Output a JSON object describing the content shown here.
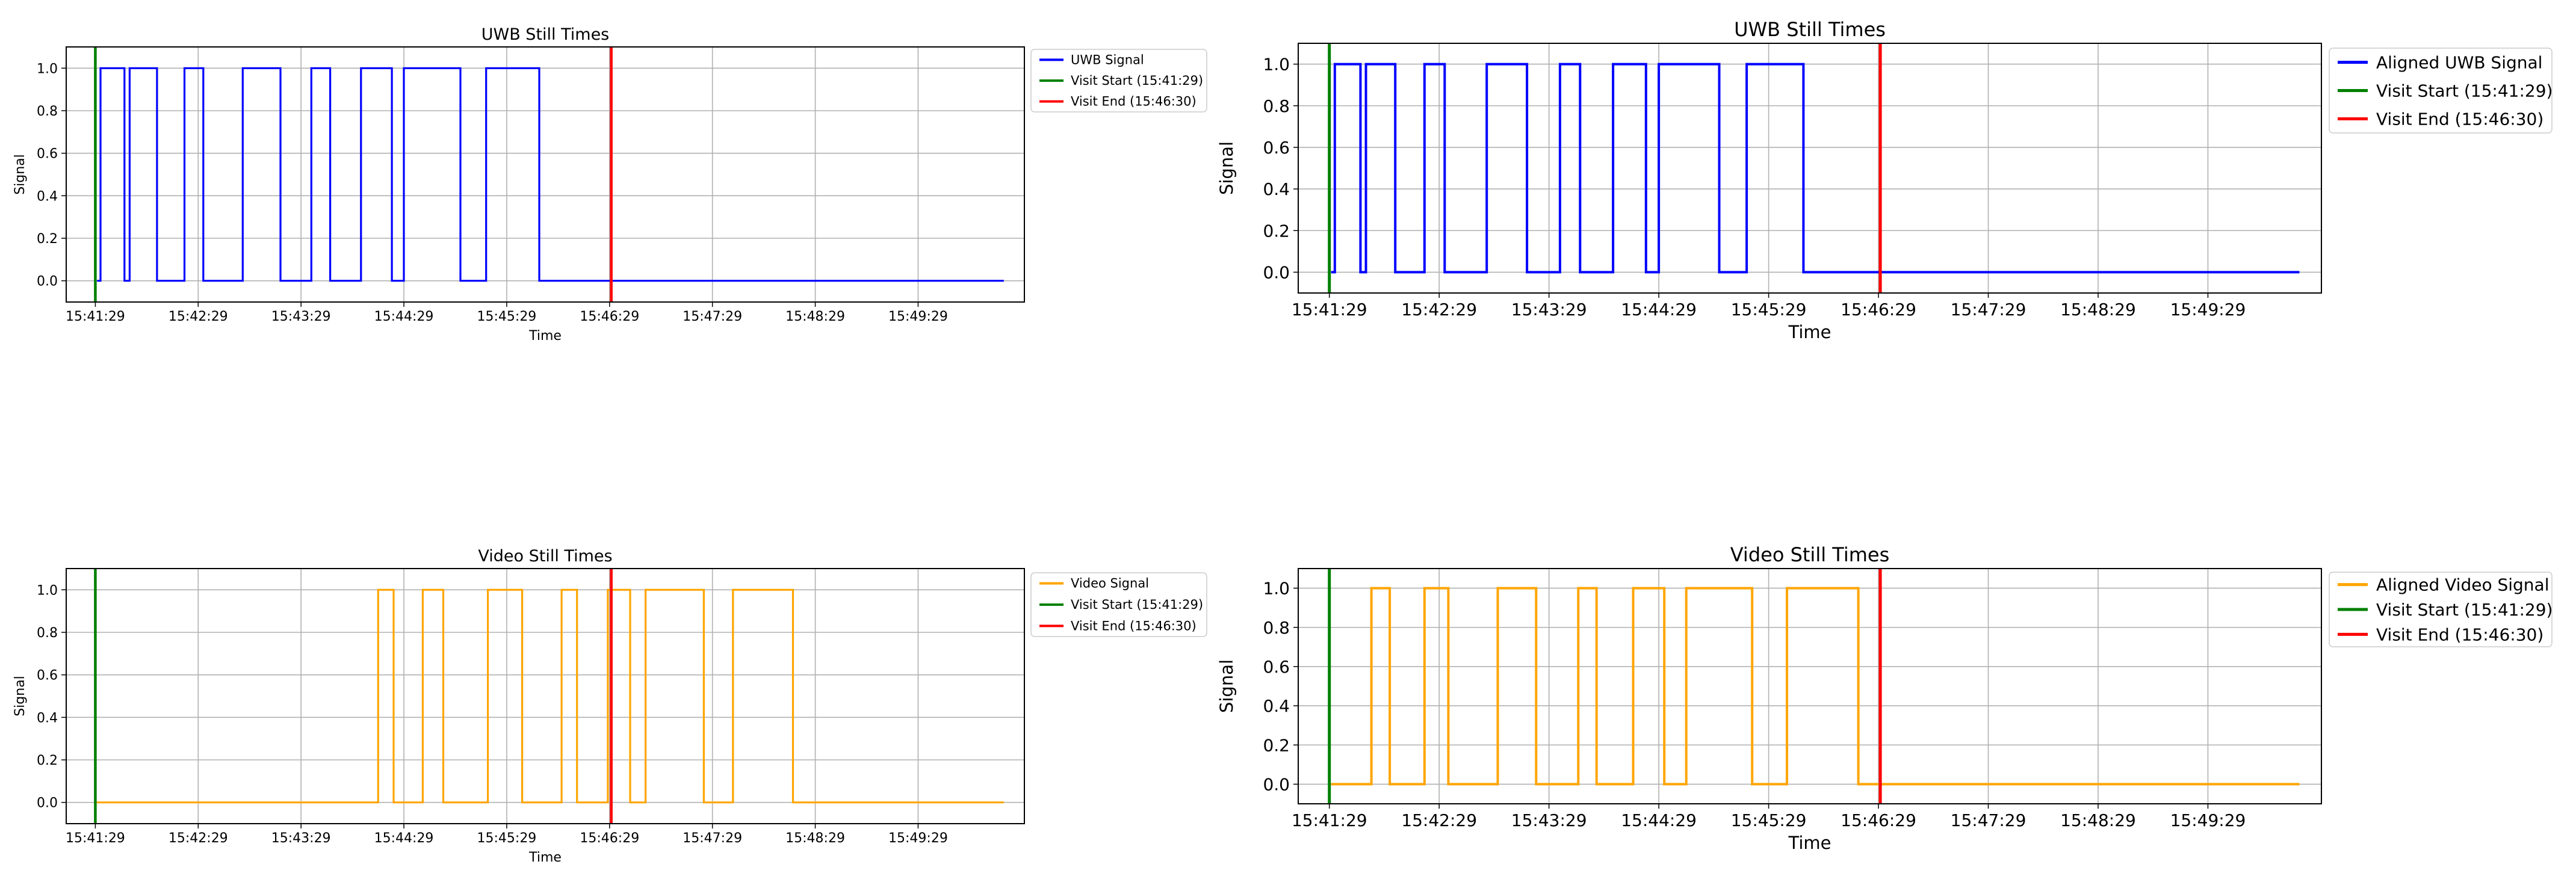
{
  "chart_data": [
    {
      "type": "line",
      "title": "UWB Still Times",
      "xlabel": "Time",
      "ylabel": "Signal",
      "x_ticks": [
        "15:41:29",
        "15:42:29",
        "15:43:29",
        "15:44:29",
        "15:45:29",
        "15:46:29",
        "15:47:29",
        "15:48:29",
        "15:49:29"
      ],
      "y_ticks": [
        "0.0",
        "0.2",
        "0.4",
        "0.6",
        "0.8",
        "1.0"
      ],
      "xlim": [
        -17,
        542
      ],
      "ylim": [
        -0.1,
        1.1
      ],
      "grid": true,
      "legend_position": "outside-top-right",
      "series": [
        {
          "name": "UWB Signal",
          "color": "#0000ff",
          "points": [
            [
              1,
              0
            ],
            [
              3,
              0
            ],
            [
              3,
              1
            ],
            [
              17,
              1
            ],
            [
              17,
              0
            ],
            [
              20,
              0
            ],
            [
              20,
              1
            ],
            [
              36,
              1
            ],
            [
              36,
              0
            ],
            [
              52,
              0
            ],
            [
              52,
              1
            ],
            [
              63,
              1
            ],
            [
              63,
              0
            ],
            [
              86,
              0
            ],
            [
              86,
              1
            ],
            [
              108,
              1
            ],
            [
              108,
              0
            ],
            [
              126,
              0
            ],
            [
              126,
              1
            ],
            [
              137,
              1
            ],
            [
              137,
              0
            ],
            [
              155,
              0
            ],
            [
              155,
              1
            ],
            [
              173,
              1
            ],
            [
              173,
              0
            ],
            [
              180,
              0
            ],
            [
              180,
              1
            ],
            [
              213,
              1
            ],
            [
              213,
              0
            ],
            [
              228,
              0
            ],
            [
              228,
              1
            ],
            [
              259,
              1
            ],
            [
              259,
              0
            ],
            [
              530,
              0
            ]
          ]
        },
        {
          "name": "Visit Start (15:41:29)",
          "color": "#008000",
          "vline": 0
        },
        {
          "name": "Visit End (15:46:30)",
          "color": "#ff0000",
          "vline": 301
        }
      ]
    },
    {
      "type": "line",
      "title": "UWB Still Times",
      "xlabel": "Time",
      "ylabel": "Signal",
      "x_ticks": [
        "15:41:29",
        "15:42:29",
        "15:43:29",
        "15:44:29",
        "15:45:29",
        "15:46:29",
        "15:47:29",
        "15:48:29",
        "15:49:29"
      ],
      "y_ticks": [
        "0.0",
        "0.2",
        "0.4",
        "0.6",
        "0.8",
        "1.0"
      ],
      "xlim": [
        -17,
        542
      ],
      "ylim": [
        -0.1,
        1.1
      ],
      "grid": true,
      "legend_position": "outside-top-right",
      "series": [
        {
          "name": "Aligned UWB Signal",
          "color": "#0000ff",
          "points": [
            [
              1,
              0
            ],
            [
              3,
              0
            ],
            [
              3,
              1
            ],
            [
              17,
              1
            ],
            [
              17,
              0
            ],
            [
              20,
              0
            ],
            [
              20,
              1
            ],
            [
              36,
              1
            ],
            [
              36,
              0
            ],
            [
              52,
              0
            ],
            [
              52,
              1
            ],
            [
              63,
              1
            ],
            [
              63,
              0
            ],
            [
              86,
              0
            ],
            [
              86,
              1
            ],
            [
              108,
              1
            ],
            [
              108,
              0
            ],
            [
              126,
              0
            ],
            [
              126,
              1
            ],
            [
              137,
              1
            ],
            [
              137,
              0
            ],
            [
              155,
              0
            ],
            [
              155,
              1
            ],
            [
              173,
              1
            ],
            [
              173,
              0
            ],
            [
              180,
              0
            ],
            [
              180,
              1
            ],
            [
              213,
              1
            ],
            [
              213,
              0
            ],
            [
              228,
              0
            ],
            [
              228,
              1
            ],
            [
              259,
              1
            ],
            [
              259,
              0
            ],
            [
              530,
              0
            ]
          ]
        },
        {
          "name": "Visit Start (15:41:29)",
          "color": "#008000",
          "vline": 0
        },
        {
          "name": "Visit End (15:46:30)",
          "color": "#ff0000",
          "vline": 301
        }
      ]
    },
    {
      "type": "line",
      "title": "Video Still Times",
      "xlabel": "Time",
      "ylabel": "Signal",
      "x_ticks": [
        "15:41:29",
        "15:42:29",
        "15:43:29",
        "15:44:29",
        "15:45:29",
        "15:46:29",
        "15:47:29",
        "15:48:29",
        "15:49:29"
      ],
      "y_ticks": [
        "0.0",
        "0.2",
        "0.4",
        "0.6",
        "0.8",
        "1.0"
      ],
      "xlim": [
        -17,
        542
      ],
      "ylim": [
        -0.1,
        1.1
      ],
      "grid": true,
      "legend_position": "outside-top-right",
      "series": [
        {
          "name": "Video Signal",
          "color": "#ffa500",
          "points": [
            [
              0,
              0
            ],
            [
              165,
              0
            ],
            [
              165,
              1
            ],
            [
              174,
              1
            ],
            [
              174,
              0
            ],
            [
              191,
              0
            ],
            [
              191,
              1
            ],
            [
              203,
              1
            ],
            [
              203,
              0
            ],
            [
              229,
              0
            ],
            [
              229,
              1
            ],
            [
              249,
              1
            ],
            [
              249,
              0
            ],
            [
              272,
              0
            ],
            [
              272,
              1
            ],
            [
              281,
              1
            ],
            [
              281,
              0
            ],
            [
              299,
              0
            ],
            [
              299,
              1
            ],
            [
              312,
              1
            ],
            [
              312,
              0
            ],
            [
              321,
              0
            ],
            [
              321,
              1
            ],
            [
              355,
              1
            ],
            [
              355,
              0
            ],
            [
              372,
              0
            ],
            [
              372,
              1
            ],
            [
              407,
              1
            ],
            [
              407,
              0
            ],
            [
              530,
              0
            ]
          ]
        },
        {
          "name": "Visit Start (15:41:29)",
          "color": "#008000",
          "vline": 0
        },
        {
          "name": "Visit End (15:46:30)",
          "color": "#ff0000",
          "vline": 301
        }
      ]
    },
    {
      "type": "line",
      "title": "Video Still Times",
      "xlabel": "Time",
      "ylabel": "Signal",
      "x_ticks": [
        "15:41:29",
        "15:42:29",
        "15:43:29",
        "15:44:29",
        "15:45:29",
        "15:46:29",
        "15:47:29",
        "15:48:29",
        "15:49:29"
      ],
      "y_ticks": [
        "0.0",
        "0.2",
        "0.4",
        "0.6",
        "0.8",
        "1.0"
      ],
      "xlim": [
        -17,
        542
      ],
      "ylim": [
        -0.1,
        1.1
      ],
      "grid": true,
      "legend_position": "outside-top-right",
      "series": [
        {
          "name": "Aligned Video Signal",
          "color": "#ffa500",
          "points": [
            [
              1,
              0
            ],
            [
              23,
              0
            ],
            [
              23,
              1
            ],
            [
              33,
              1
            ],
            [
              33,
              0
            ],
            [
              52,
              0
            ],
            [
              52,
              1
            ],
            [
              65,
              1
            ],
            [
              65,
              0
            ],
            [
              92,
              0
            ],
            [
              92,
              1
            ],
            [
              113,
              1
            ],
            [
              113,
              0
            ],
            [
              136,
              0
            ],
            [
              136,
              1
            ],
            [
              146,
              1
            ],
            [
              146,
              0
            ],
            [
              166,
              0
            ],
            [
              166,
              1
            ],
            [
              183,
              1
            ],
            [
              183,
              0
            ],
            [
              195,
              0
            ],
            [
              195,
              1
            ],
            [
              231,
              1
            ],
            [
              231,
              0
            ],
            [
              250,
              0
            ],
            [
              250,
              1
            ],
            [
              289,
              1
            ],
            [
              289,
              0
            ],
            [
              530,
              0
            ]
          ]
        },
        {
          "name": "Visit Start (15:41:29)",
          "color": "#008000",
          "vline": 0
        },
        {
          "name": "Visit End (15:46:30)",
          "color": "#ff0000",
          "vline": 301
        }
      ]
    }
  ]
}
